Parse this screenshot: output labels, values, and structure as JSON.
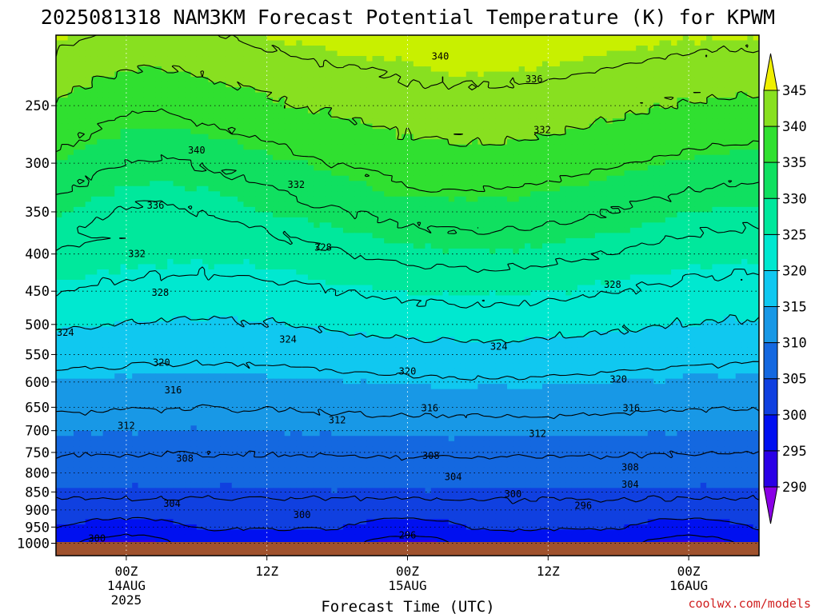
{
  "chart_data": {
    "type": "heatmap",
    "title": "2025081318 NAM3KM Forecast Potential Temperature (K) for KPWM",
    "xlabel": "Forecast Time (UTC)",
    "ylabel": "",
    "credit": "coolwx.com/models",
    "y_axis": {
      "scale": "log",
      "reversed": true,
      "ticks": [
        250,
        300,
        350,
        400,
        450,
        500,
        550,
        600,
        650,
        700,
        750,
        800,
        850,
        900,
        950,
        1000
      ],
      "range": [
        1040,
        200
      ]
    },
    "x_axis": {
      "range_hours": [
        -6,
        54
      ],
      "ticks": [
        {
          "hour": 0,
          "lines": [
            "00Z",
            "14AUG",
            "2025"
          ]
        },
        {
          "hour": 12,
          "lines": [
            "12Z"
          ]
        },
        {
          "hour": 24,
          "lines": [
            "00Z",
            "15AUG"
          ]
        },
        {
          "hour": 36,
          "lines": [
            "12Z"
          ]
        },
        {
          "hour": 48,
          "lines": [
            "00Z",
            "16AUG"
          ]
        }
      ]
    },
    "grid": true,
    "colorbar": {
      "levels": [
        290,
        295,
        300,
        305,
        310,
        315,
        320,
        325,
        330,
        335,
        340,
        345
      ],
      "colors": [
        "#8a00e6",
        "#2a00e6",
        "#0010f0",
        "#1040e0",
        "#1468e0",
        "#1898e6",
        "#10c8f0",
        "#00e8d0",
        "#00e89c",
        "#10e060",
        "#30e030",
        "#88e020",
        "#c8f000",
        "#f0f000"
      ],
      "orientation": "vertical",
      "position": "right"
    },
    "ground_color": "#a0522d",
    "contour_interval": 4,
    "contour_labels": [
      {
        "value": "340",
        "hour": 6.0,
        "p": 288
      },
      {
        "value": "340",
        "hour": 26.8,
        "p": 214
      },
      {
        "value": "336",
        "hour": 34.8,
        "p": 230
      },
      {
        "value": "336",
        "hour": 2.5,
        "p": 343
      },
      {
        "value": "332",
        "hour": 14.5,
        "p": 321
      },
      {
        "value": "332",
        "hour": 0.9,
        "p": 400
      },
      {
        "value": "332",
        "hour": 35.5,
        "p": 270
      },
      {
        "value": "328",
        "hour": 2.9,
        "p": 452
      },
      {
        "value": "328",
        "hour": 16.8,
        "p": 392
      },
      {
        "value": "328",
        "hour": 41.5,
        "p": 441
      },
      {
        "value": "324",
        "hour": -5.2,
        "p": 513
      },
      {
        "value": "324",
        "hour": 13.8,
        "p": 524
      },
      {
        "value": "324",
        "hour": 31.8,
        "p": 536
      },
      {
        "value": "320",
        "hour": 3.0,
        "p": 564
      },
      {
        "value": "320",
        "hour": 24.0,
        "p": 580
      },
      {
        "value": "320",
        "hour": 42.0,
        "p": 595
      },
      {
        "value": "316",
        "hour": 4.0,
        "p": 616
      },
      {
        "value": "316",
        "hour": 25.9,
        "p": 652
      },
      {
        "value": "316",
        "hour": 43.1,
        "p": 652
      },
      {
        "value": "312",
        "hour": 0.0,
        "p": 689
      },
      {
        "value": "312",
        "hour": 18.0,
        "p": 677
      },
      {
        "value": "312",
        "hour": 35.1,
        "p": 707
      },
      {
        "value": "308",
        "hour": 5.0,
        "p": 765
      },
      {
        "value": "308",
        "hour": 26.0,
        "p": 758
      },
      {
        "value": "308",
        "hour": 43.0,
        "p": 786
      },
      {
        "value": "304",
        "hour": 27.9,
        "p": 810
      },
      {
        "value": "304",
        "hour": 43.0,
        "p": 830
      },
      {
        "value": "304",
        "hour": 3.9,
        "p": 882
      },
      {
        "value": "300",
        "hour": 33.0,
        "p": 856
      },
      {
        "value": "300",
        "hour": 15.0,
        "p": 914
      },
      {
        "value": "300",
        "hour": -2.5,
        "p": 985
      },
      {
        "value": "296",
        "hour": 39.0,
        "p": 888
      },
      {
        "value": "296",
        "hour": 24.0,
        "p": 975
      }
    ]
  }
}
